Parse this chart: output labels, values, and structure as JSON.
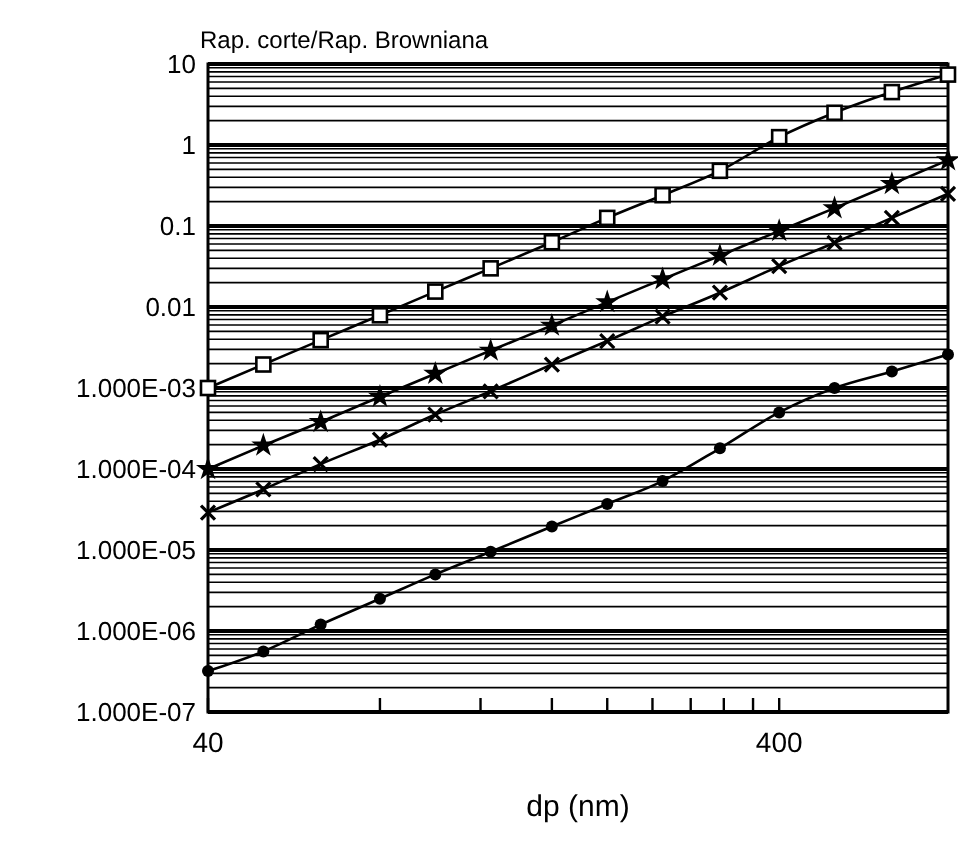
{
  "chart_data": {
    "type": "line",
    "ylabel": "Rap. corte/Rap. Browniana",
    "xlabel": "dp (nm)",
    "log": "xy",
    "grid": "y",
    "line_style": "solid",
    "x": [
      40,
      50,
      63,
      80,
      100,
      125,
      160,
      200,
      250,
      315,
      400,
      500,
      630,
      790
    ],
    "xlim": [
      40,
      790
    ],
    "xticks": [
      40,
      {
        "value": 80,
        "label": null
      },
      {
        "value": 120,
        "label": null
      },
      {
        "value": 160,
        "label": null
      },
      {
        "value": 200,
        "label": null
      },
      {
        "value": 240,
        "label": null
      },
      {
        "value": 280,
        "label": null
      },
      {
        "value": 320,
        "label": null
      },
      {
        "value": 360,
        "label": null
      },
      400
    ],
    "ylim": [
      1e-07,
      10
    ],
    "yticks": [
      {
        "value": 1e-07,
        "label": "1.000E-07"
      },
      {
        "value": 2e-07,
        "label": null
      },
      {
        "value": 3e-07,
        "label": null
      },
      {
        "value": 4e-07,
        "label": null
      },
      {
        "value": 5e-07,
        "label": null
      },
      {
        "value": 6e-07,
        "label": null
      },
      {
        "value": 7e-07,
        "label": null
      },
      {
        "value": 8e-07,
        "label": null
      },
      {
        "value": 9e-07,
        "label": null
      },
      {
        "value": 1e-06,
        "label": "1.000E-06"
      },
      {
        "value": 2e-06,
        "label": null
      },
      {
        "value": 3e-06,
        "label": null
      },
      {
        "value": 4e-06,
        "label": null
      },
      {
        "value": 5e-06,
        "label": null
      },
      {
        "value": 6e-06,
        "label": null
      },
      {
        "value": 7e-06,
        "label": null
      },
      {
        "value": 8e-06,
        "label": null
      },
      {
        "value": 9e-06,
        "label": null
      },
      {
        "value": 1e-05,
        "label": "1.000E-05"
      },
      {
        "value": 2e-05,
        "label": null
      },
      {
        "value": 3e-05,
        "label": null
      },
      {
        "value": 4e-05,
        "label": null
      },
      {
        "value": 5e-05,
        "label": null
      },
      {
        "value": 6e-05,
        "label": null
      },
      {
        "value": 7e-05,
        "label": null
      },
      {
        "value": 8e-05,
        "label": null
      },
      {
        "value": 9e-05,
        "label": null
      },
      {
        "value": 0.0001,
        "label": "1.000E-04"
      },
      {
        "value": 0.0002,
        "label": null
      },
      {
        "value": 0.0003,
        "label": null
      },
      {
        "value": 0.0004,
        "label": null
      },
      {
        "value": 0.0005,
        "label": null
      },
      {
        "value": 0.0006,
        "label": null
      },
      {
        "value": 0.0007,
        "label": null
      },
      {
        "value": 0.0008,
        "label": null
      },
      {
        "value": 0.0009,
        "label": null
      },
      {
        "value": 0.001,
        "label": "1.000E-03"
      },
      {
        "value": 0.002,
        "label": null
      },
      {
        "value": 0.003,
        "label": null
      },
      {
        "value": 0.004,
        "label": null
      },
      {
        "value": 0.005,
        "label": null
      },
      {
        "value": 0.006,
        "label": null
      },
      {
        "value": 0.007,
        "label": null
      },
      {
        "value": 0.008,
        "label": null
      },
      {
        "value": 0.009,
        "label": null
      },
      0.01,
      {
        "value": 0.02,
        "label": null
      },
      {
        "value": 0.03,
        "label": null
      },
      {
        "value": 0.04,
        "label": null
      },
      {
        "value": 0.05,
        "label": null
      },
      {
        "value": 0.06,
        "label": null
      },
      {
        "value": 0.07,
        "label": null
      },
      {
        "value": 0.08,
        "label": null
      },
      {
        "value": 0.09,
        "label": null
      },
      0.1,
      {
        "value": 0.2,
        "label": null
      },
      {
        "value": 0.3,
        "label": null
      },
      {
        "value": 0.4,
        "label": null
      },
      {
        "value": 0.5,
        "label": null
      },
      {
        "value": 0.6,
        "label": null
      },
      {
        "value": 0.7,
        "label": null
      },
      {
        "value": 0.8,
        "label": null
      },
      {
        "value": 0.9,
        "label": null
      },
      1,
      {
        "value": 2,
        "label": null
      },
      {
        "value": 3,
        "label": null
      },
      {
        "value": 4,
        "label": null
      },
      {
        "value": 5,
        "label": null
      },
      {
        "value": 6,
        "label": null
      },
      {
        "value": 7,
        "label": null
      },
      {
        "value": 8,
        "label": null
      },
      {
        "value": 9,
        "label": null
      },
      10
    ],
    "series": [
      {
        "color": "#000000",
        "marker": "square",
        "values": [
          0.001,
          0.00195,
          0.0039,
          0.0079,
          0.0155,
          0.03,
          0.063,
          0.126,
          0.24,
          0.48,
          1.25,
          2.5,
          4.5,
          7.4
        ]
      },
      {
        "color": "#000000",
        "marker": "star",
        "values": [
          0.0001,
          0.000195,
          0.00038,
          0.00078,
          0.0015,
          0.0029,
          0.0059,
          0.0115,
          0.022,
          0.043,
          0.087,
          0.166,
          0.33,
          0.65
        ]
      },
      {
        "color": "#000000",
        "marker": "cross",
        "values": [
          2.9e-05,
          5.6e-05,
          0.000115,
          0.00023,
          0.00047,
          0.00091,
          0.00195,
          0.0038,
          0.0076,
          0.015,
          0.032,
          0.062,
          0.126,
          0.25
        ]
      },
      {
        "color": "#000000",
        "marker": "circle",
        "values": [
          3.2e-07,
          5.6e-07,
          1.2e-06,
          2.5e-06,
          5e-06,
          9.5e-06,
          1.95e-05,
          3.7e-05,
          7.1e-05,
          0.00018,
          0.0005,
          0.001,
          0.0016,
          0.0026
        ]
      }
    ]
  }
}
